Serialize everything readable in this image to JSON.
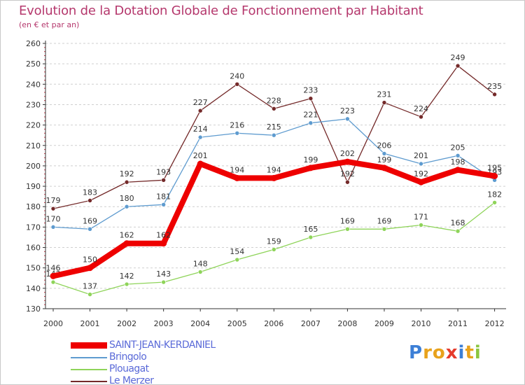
{
  "title": "Evolution de la Dotation Globale de Fonctionnement par Habitant",
  "subtitle": "(en € et par an)",
  "colors": {
    "text": "#b5386d",
    "axis": "#333333",
    "grid": "#cfcfcf",
    "legend_text": "#5a6ad8"
  },
  "chart_data": {
    "type": "line",
    "title": "Evolution de la Dotation Globale de Fonctionnement par Habitant",
    "subtitle": "(en € et par an)",
    "xlabel": "",
    "ylabel": "",
    "x": [
      "2000",
      "2001",
      "2002",
      "2003",
      "2004",
      "2005",
      "2006",
      "2007",
      "2008",
      "2009",
      "2010",
      "2011",
      "2012"
    ],
    "ylim": [
      130,
      260
    ],
    "yticks": [
      130,
      140,
      150,
      160,
      170,
      180,
      190,
      200,
      210,
      220,
      230,
      240,
      250,
      260
    ],
    "grid": "horizontal dashed",
    "legend_position": "bottom-left",
    "series": [
      {
        "name": "SAINT-JEAN-KERDANIEL",
        "color": "#ee0000",
        "values": [
          146,
          150,
          162,
          162,
          201,
          194,
          194,
          199,
          202,
          199,
          192,
          198,
          195
        ]
      },
      {
        "name": "Bringolo",
        "color": "#5e9bcf",
        "values": [
          170,
          169,
          180,
          181,
          214,
          216,
          215,
          221,
          223,
          206,
          201,
          205,
          193
        ]
      },
      {
        "name": "Plouagat",
        "color": "#8fd45a",
        "values": [
          143,
          137,
          142,
          143,
          148,
          154,
          159,
          165,
          169,
          169,
          171,
          168,
          182
        ]
      },
      {
        "name": "Le Merzer",
        "color": "#742a2a",
        "values": [
          179,
          183,
          192,
          193,
          227,
          240,
          228,
          233,
          192,
          231,
          224,
          249,
          235
        ]
      }
    ]
  },
  "logo": {
    "letters": [
      "P",
      "r",
      "o",
      "x",
      "i",
      "t",
      "i"
    ],
    "colors": [
      "#3c7fd6",
      "#e8a21c",
      "#e8a21c",
      "#e53b2c",
      "#3c7fd6",
      "#e8a21c",
      "#8bc53f"
    ]
  }
}
